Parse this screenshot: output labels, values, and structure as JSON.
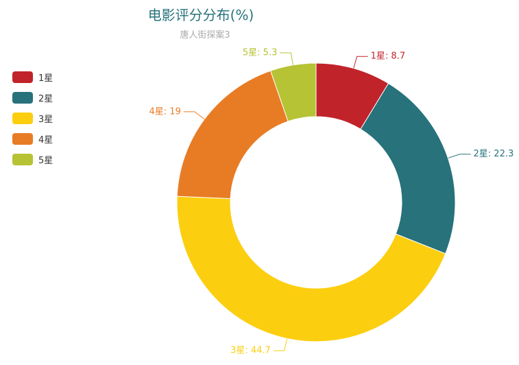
{
  "chart_data": {
    "type": "pie",
    "title": "电影评分分布(%)",
    "subtitle": "唐人街探案3",
    "categories": [
      "1星",
      "2星",
      "3星",
      "4星",
      "5星"
    ],
    "values": [
      8.7,
      22.3,
      44.7,
      19,
      5.3
    ],
    "colors": [
      "#c1232b",
      "#27727b",
      "#fcce10",
      "#e87c25",
      "#b5c334"
    ],
    "title_color": "#27727b",
    "legend_position": "left",
    "donut": true
  }
}
